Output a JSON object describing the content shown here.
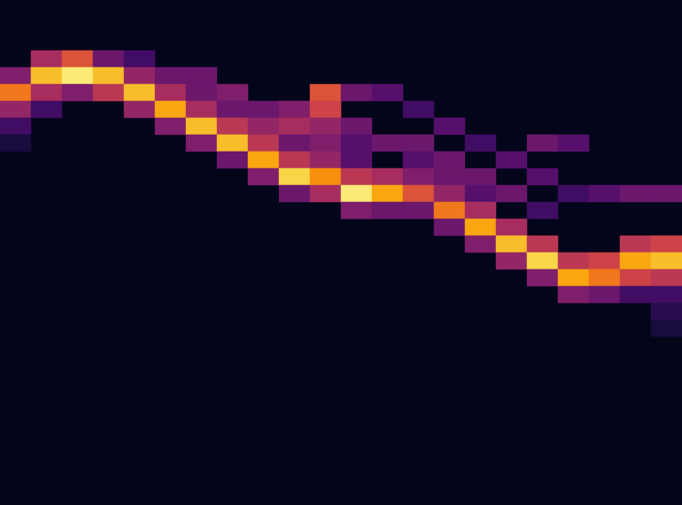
{
  "chart_data": {
    "type": "heatmap",
    "tick_labels": false,
    "grid": false,
    "xlim": [
      0,
      21
    ],
    "ylim": [
      0,
      29
    ],
    "zlim": [
      0,
      1
    ],
    "cells": [
      [
        0,
        4,
        0.35
      ],
      [
        0,
        5,
        0.7
      ],
      [
        0,
        6,
        0.4
      ],
      [
        0,
        7,
        0.2
      ],
      [
        0,
        8,
        0.1
      ],
      [
        1,
        3,
        0.45
      ],
      [
        1,
        4,
        0.85
      ],
      [
        1,
        5,
        0.45
      ],
      [
        1,
        6,
        0.2
      ],
      [
        2,
        3,
        0.6
      ],
      [
        2,
        4,
        0.95
      ],
      [
        2,
        5,
        0.35
      ],
      [
        3,
        3,
        0.3
      ],
      [
        3,
        4,
        0.85
      ],
      [
        3,
        5,
        0.5
      ],
      [
        4,
        3,
        0.2
      ],
      [
        4,
        4,
        0.4
      ],
      [
        4,
        5,
        0.85
      ],
      [
        4,
        6,
        0.4
      ],
      [
        5,
        4,
        0.3
      ],
      [
        5,
        5,
        0.45
      ],
      [
        5,
        6,
        0.8
      ],
      [
        5,
        7,
        0.35
      ],
      [
        6,
        4,
        0.3
      ],
      [
        6,
        5,
        0.3
      ],
      [
        6,
        6,
        0.45
      ],
      [
        6,
        7,
        0.85
      ],
      [
        6,
        8,
        0.35
      ],
      [
        7,
        5,
        0.35
      ],
      [
        7,
        6,
        0.3
      ],
      [
        7,
        7,
        0.5
      ],
      [
        7,
        8,
        0.85
      ],
      [
        7,
        9,
        0.3
      ],
      [
        8,
        6,
        0.3
      ],
      [
        8,
        7,
        0.4
      ],
      [
        8,
        8,
        0.5
      ],
      [
        8,
        9,
        0.8
      ],
      [
        8,
        10,
        0.35
      ],
      [
        9,
        6,
        0.35
      ],
      [
        9,
        7,
        0.45
      ],
      [
        9,
        8,
        0.3
      ],
      [
        9,
        9,
        0.5
      ],
      [
        9,
        10,
        0.9
      ],
      [
        9,
        11,
        0.3
      ],
      [
        10,
        5,
        0.6
      ],
      [
        10,
        6,
        0.55
      ],
      [
        10,
        7,
        0.4
      ],
      [
        10,
        8,
        0.35
      ],
      [
        10,
        9,
        0.4
      ],
      [
        10,
        10,
        0.75
      ],
      [
        10,
        11,
        0.45
      ],
      [
        11,
        5,
        0.3
      ],
      [
        11,
        7,
        0.3
      ],
      [
        11,
        8,
        0.25
      ],
      [
        11,
        9,
        0.25
      ],
      [
        11,
        10,
        0.5
      ],
      [
        11,
        11,
        0.95
      ],
      [
        11,
        12,
        0.35
      ],
      [
        12,
        5,
        0.25
      ],
      [
        12,
        8,
        0.3
      ],
      [
        12,
        10,
        0.45
      ],
      [
        12,
        11,
        0.8
      ],
      [
        12,
        12,
        0.3
      ],
      [
        13,
        6,
        0.2
      ],
      [
        13,
        8,
        0.3
      ],
      [
        13,
        9,
        0.25
      ],
      [
        13,
        10,
        0.35
      ],
      [
        13,
        11,
        0.6
      ],
      [
        13,
        12,
        0.3
      ],
      [
        14,
        7,
        0.25
      ],
      [
        14,
        9,
        0.3
      ],
      [
        14,
        10,
        0.3
      ],
      [
        14,
        11,
        0.4
      ],
      [
        14,
        12,
        0.7
      ],
      [
        14,
        13,
        0.3
      ],
      [
        15,
        8,
        0.2
      ],
      [
        15,
        10,
        0.3
      ],
      [
        15,
        11,
        0.25
      ],
      [
        15,
        12,
        0.45
      ],
      [
        15,
        13,
        0.8
      ],
      [
        15,
        14,
        0.35
      ],
      [
        16,
        9,
        0.25
      ],
      [
        16,
        11,
        0.3
      ],
      [
        16,
        13,
        0.45
      ],
      [
        16,
        14,
        0.85
      ],
      [
        16,
        15,
        0.4
      ],
      [
        17,
        8,
        0.3
      ],
      [
        17,
        10,
        0.25
      ],
      [
        17,
        12,
        0.2
      ],
      [
        17,
        14,
        0.5
      ],
      [
        17,
        15,
        0.9
      ],
      [
        17,
        16,
        0.35
      ],
      [
        18,
        8,
        0.25
      ],
      [
        18,
        11,
        0.2
      ],
      [
        18,
        15,
        0.5
      ],
      [
        18,
        16,
        0.8
      ],
      [
        18,
        17,
        0.35
      ],
      [
        19,
        11,
        0.25
      ],
      [
        19,
        15,
        0.55
      ],
      [
        19,
        16,
        0.7
      ],
      [
        19,
        17,
        0.3
      ],
      [
        20,
        11,
        0.3
      ],
      [
        20,
        14,
        0.5
      ],
      [
        20,
        15,
        0.8
      ],
      [
        20,
        16,
        0.55
      ],
      [
        20,
        17,
        0.2
      ],
      [
        21,
        11,
        0.3
      ],
      [
        21,
        14,
        0.55
      ],
      [
        21,
        15,
        0.85
      ],
      [
        21,
        16,
        0.5
      ],
      [
        21,
        17,
        0.2
      ],
      [
        21,
        18,
        0.15
      ],
      [
        21,
        19,
        0.1
      ]
    ]
  }
}
